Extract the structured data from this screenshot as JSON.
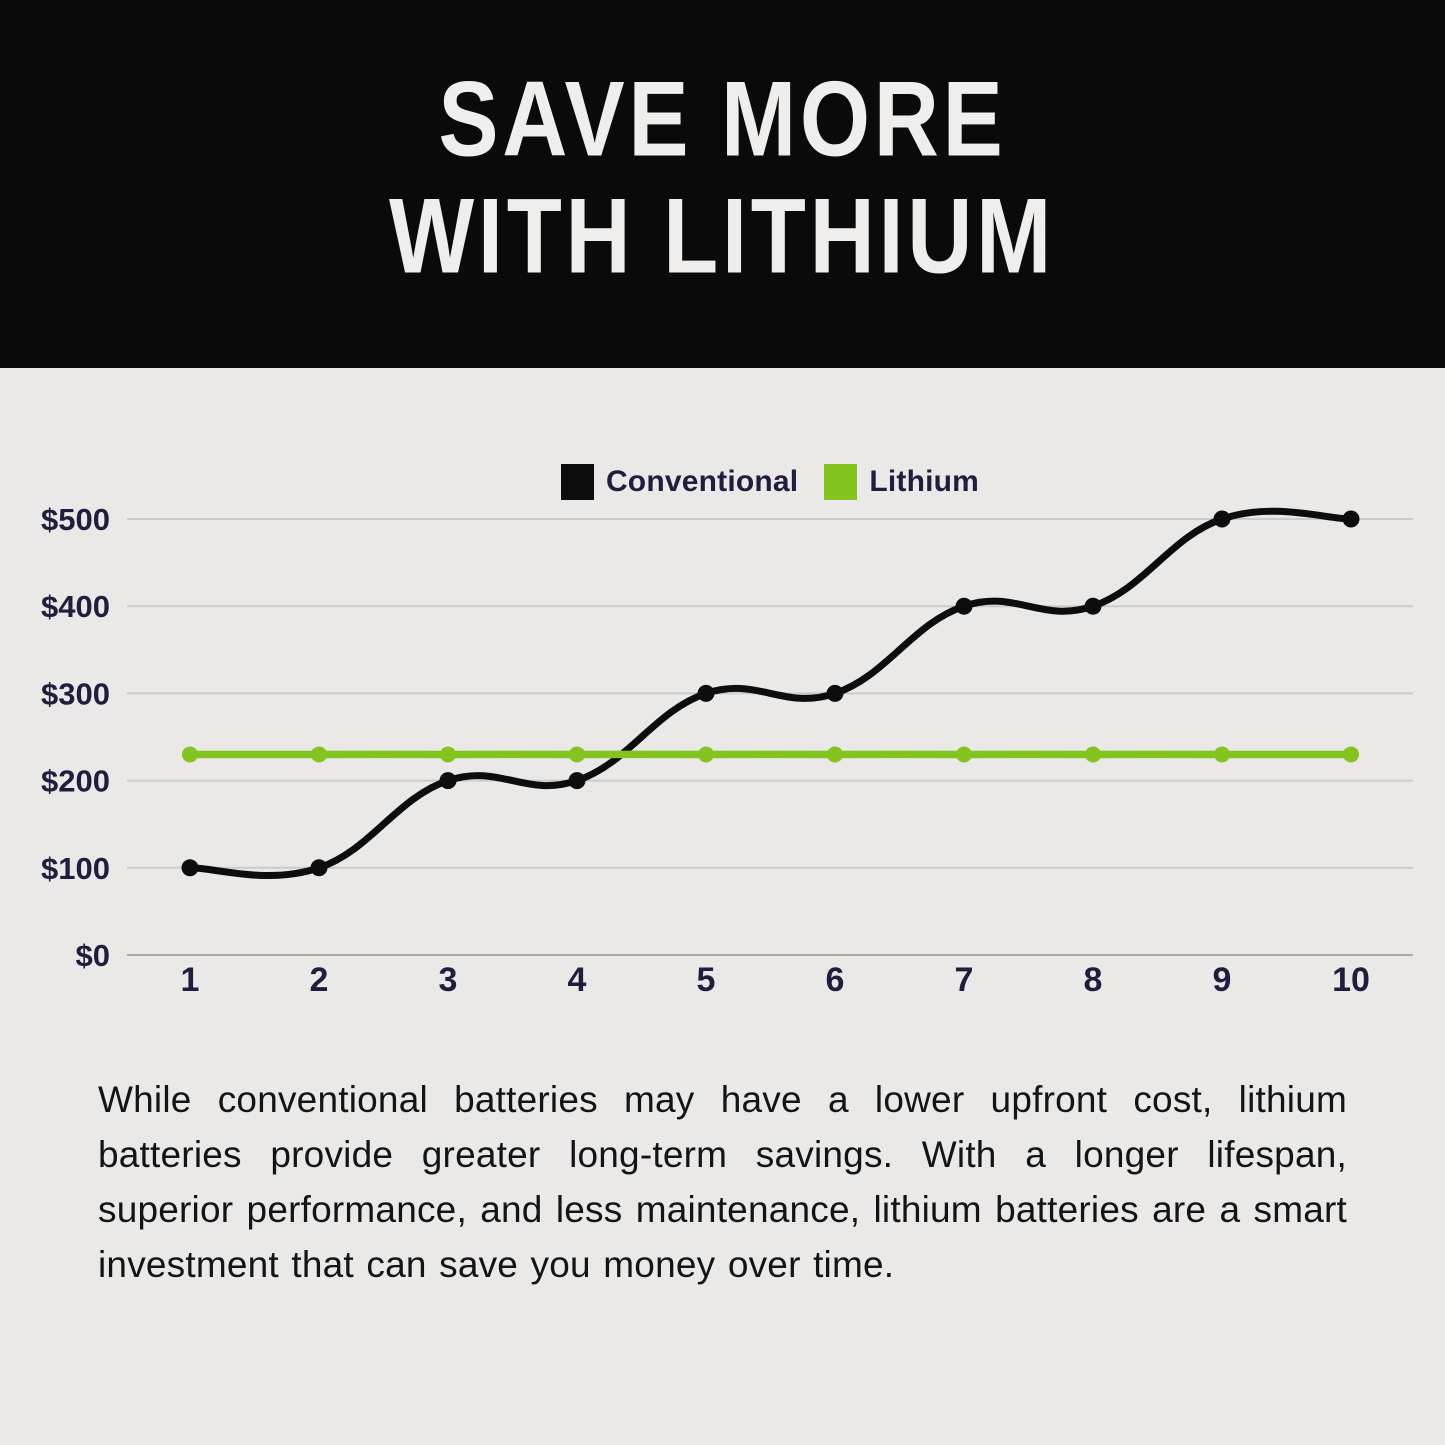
{
  "header": {
    "title_line1": "SAVE MORE",
    "title_line2": "WITH LITHIUM"
  },
  "chart": {
    "legend": [
      {
        "label": "Conventional",
        "color": "#0d0d0d"
      },
      {
        "label": "Lithium",
        "color": "#84c41f"
      }
    ]
  },
  "chart_data": {
    "type": "line",
    "title": "",
    "categories": [
      "1",
      "2",
      "3",
      "4",
      "5",
      "6",
      "7",
      "8",
      "9",
      "10"
    ],
    "series": [
      {
        "name": "Conventional",
        "color": "#0d0d0d",
        "values": [
          100,
          100,
          200,
          200,
          300,
          300,
          400,
          400,
          500,
          500
        ]
      },
      {
        "name": "Lithium",
        "color": "#84c41f",
        "values": [
          230,
          230,
          230,
          230,
          230,
          230,
          230,
          230,
          230,
          230
        ]
      }
    ],
    "xlabel": "",
    "ylabel": "",
    "ylim": [
      0,
      500
    ],
    "y_ticks": [
      {
        "value": 0,
        "label": "$0"
      },
      {
        "value": 100,
        "label": "$100"
      },
      {
        "value": 200,
        "label": "$200"
      },
      {
        "value": 300,
        "label": "$300"
      },
      {
        "value": 400,
        "label": "$400"
      },
      {
        "value": 500,
        "label": "$500"
      }
    ],
    "grid": true,
    "legend_position": "top",
    "line_style": "smooth"
  },
  "description": {
    "text": "While conventional batteries may have a lower upfront cost, lithium batteries provide greater long-term savings. With a longer lifespan, superior performance, and less maintenance, lithium batteries are a smart investment that can save you money over time."
  },
  "colors": {
    "background": "#eae9e7",
    "header_bg": "#0a0a0a",
    "title_text": "#efeeec",
    "axis_text": "#221c3e",
    "gridline": "#cccbc9",
    "body_text": "#141414",
    "lithium_green": "#84c41f",
    "conventional_black": "#0d0d0d"
  }
}
